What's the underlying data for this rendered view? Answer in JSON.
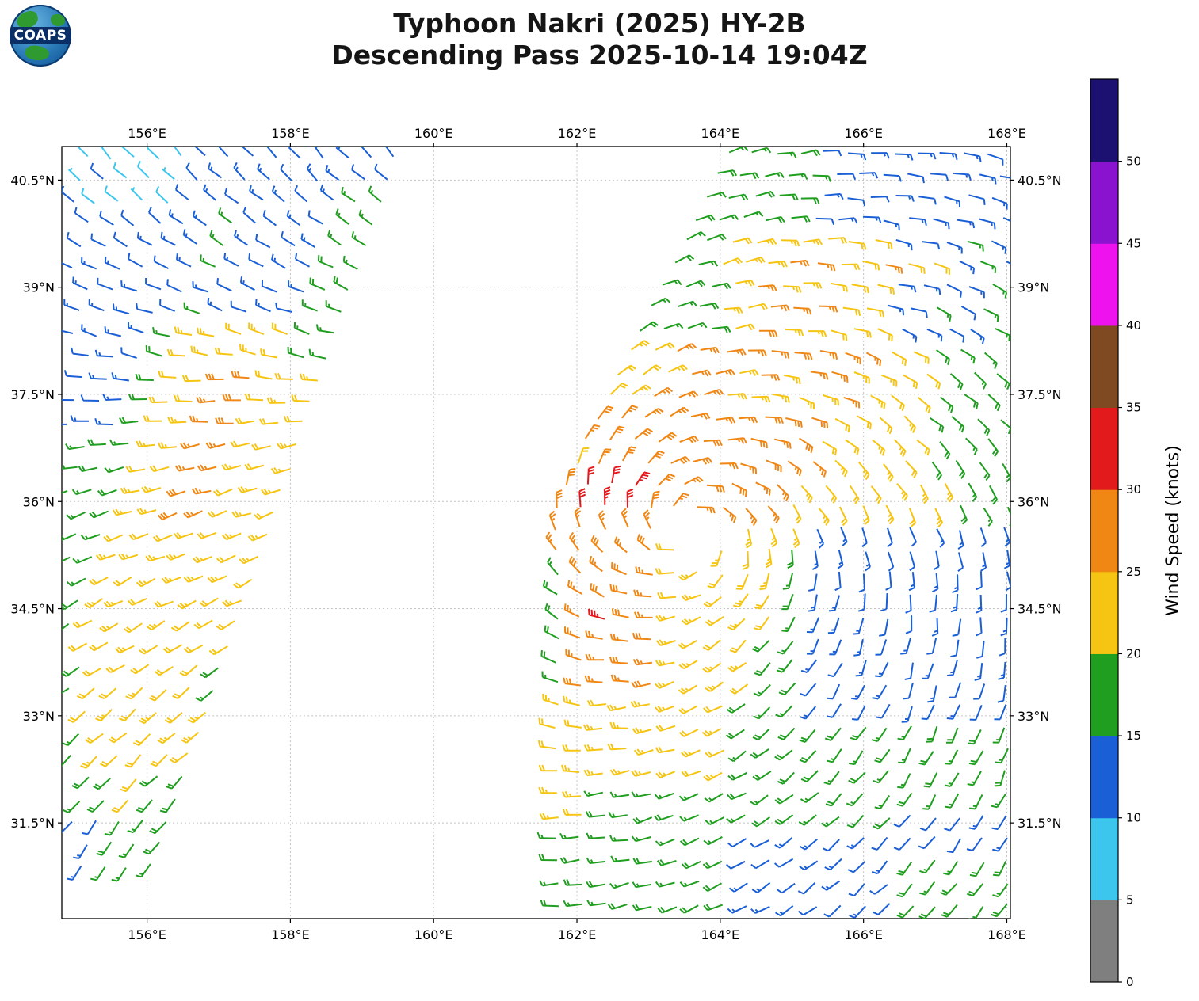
{
  "header": {
    "logo_text": "COAPS",
    "title_line1": "Typhoon Nakri (2025) HY-2B",
    "title_line2": "Descending Pass 2025-10-14 19:04Z"
  },
  "axes": {
    "lon_range": [
      154.81,
      168.05
    ],
    "lat_range": [
      30.16,
      40.97
    ],
    "lon_ticks": [
      {
        "value": 156,
        "label": "156°E"
      },
      {
        "value": 158,
        "label": "158°E"
      },
      {
        "value": 160,
        "label": "160°E"
      },
      {
        "value": 162,
        "label": "162°E"
      },
      {
        "value": 164,
        "label": "164°E"
      },
      {
        "value": 166,
        "label": "166°E"
      },
      {
        "value": 168,
        "label": "168°E"
      }
    ],
    "lat_ticks": [
      {
        "value": 40.5,
        "label": "40.5°N"
      },
      {
        "value": 39,
        "label": "39°N"
      },
      {
        "value": 37.5,
        "label": "37.5°N"
      },
      {
        "value": 36,
        "label": "36°N"
      },
      {
        "value": 34.5,
        "label": "34.5°N"
      },
      {
        "value": 33,
        "label": "33°N"
      },
      {
        "value": 31.5,
        "label": "31.5°N"
      }
    ]
  },
  "colorbar": {
    "label": "Wind Speed (knots)",
    "ticks": [
      0,
      5,
      10,
      15,
      20,
      25,
      30,
      35,
      40,
      45,
      50
    ],
    "segments_bottom_to_top": [
      {
        "from": 0,
        "to": 5,
        "color": "#7f7f7f"
      },
      {
        "from": 5,
        "to": 10,
        "color": "#3cc6ee"
      },
      {
        "from": 10,
        "to": 15,
        "color": "#1a5fd6"
      },
      {
        "from": 15,
        "to": 20,
        "color": "#1f9e1f"
      },
      {
        "from": 20,
        "to": 25,
        "color": "#f6c513"
      },
      {
        "from": 25,
        "to": 30,
        "color": "#f08714"
      },
      {
        "from": 30,
        "to": 35,
        "color": "#e31a1c"
      },
      {
        "from": 35,
        "to": 40,
        "color": "#7f4a21"
      },
      {
        "from": 40,
        "to": 45,
        "color": "#ee13ee"
      },
      {
        "from": 45,
        "to": 50,
        "color": "#8a13d0"
      },
      {
        "from": 50,
        "to": 55,
        "color": "#1c1070"
      }
    ]
  },
  "chart_data": {
    "type": "wind_barb_map",
    "satellite": "HY-2B",
    "storm": "Typhoon Nakri (2025)",
    "pass": "Descending 2025-10-14 19:04Z",
    "units": "knots",
    "storm_center_estimate": {
      "lon": 163.7,
      "lat": 35.6
    },
    "max_wind_regions": [
      {
        "lon": 162.4,
        "lat": 34.35,
        "kt": 32
      },
      {
        "lon": 162.5,
        "lat": 36.1,
        "kt": 32
      }
    ],
    "barb_grid_spacing_deg": {
      "lon": 0.33,
      "lat": 0.31
    },
    "vortex": {
      "center_lon": 163.55,
      "center_lat": 35.62,
      "inflow_deg": 20,
      "rotation": "counterclockwise"
    },
    "data_gap_ellipse": {
      "center_lon": 163.7,
      "center_lat": 35.6,
      "rx_deg": 0.65,
      "ry_deg": 0.33
    },
    "left_swath": {
      "lat_range": [
        30.85,
        40.92
      ],
      "right_edge": {
        "lon_at_lat33": 156.9,
        "dlon_dlat": 0.342
      },
      "width_deg": 4.6,
      "min_lon": 154.88,
      "wind_from_deg_by_lat": [
        [
          31,
          215
        ],
        [
          34,
          237
        ],
        [
          36.5,
          257
        ],
        [
          38.5,
          287
        ],
        [
          40.8,
          317
        ]
      ],
      "speed_zones": [
        {
          "lat": [
            40.0,
            41.0
          ],
          "c": [
            -999,
            154.9
          ],
          "kt": 8
        },
        {
          "lat": [
            40.35,
            41.0
          ],
          "kt": 12.5
        },
        {
          "lat": [
            37.9,
            40.35
          ],
          "c": [
            157.2,
            999
          ],
          "kt": 17.5
        },
        {
          "lat": [
            38.5,
            39.9
          ],
          "c": [
            155.5,
            156.15
          ],
          "kt": 16.5
        },
        {
          "lat": [
            38.35,
            40.35
          ],
          "kt": 12.5
        },
        {
          "lat": [
            37.1,
            38.35
          ],
          "c": [
            -999,
            155.25
          ],
          "kt": 12.5
        },
        {
          "lat": [
            35.8,
            37.95
          ],
          "c": [
            156.3,
            157.0
          ],
          "kt": 27.5
        },
        {
          "lat": [
            34.0,
            38.35
          ],
          "c": [
            155.75,
            999
          ],
          "kt": 22.5
        },
        {
          "lat": [
            34.0,
            38.35
          ],
          "kt": 17.5
        },
        {
          "lat": [
            32.3,
            34.0
          ],
          "lon": [
            155.15,
            156.9
          ],
          "kt": 22.5
        },
        {
          "lat": [
            32.3,
            34.0
          ],
          "kt": 17.5
        },
        {
          "lat": [
            31.6,
            32.3
          ],
          "lon": [
            155.2,
            156.3
          ],
          "kt": 20
        },
        {
          "lat": [
            31.6,
            32.3
          ],
          "kt": 17.5
        },
        {
          "lat": [
            -999,
            31.6
          ],
          "lon": [
            -999,
            155.35
          ],
          "kt": 12.5
        },
        {
          "lat": [
            -999,
            31.6
          ],
          "kt": 17.5
        }
      ]
    },
    "right_swath": {
      "lat_range": [
        30.3,
        40.92
      ],
      "left_edge": {
        "base_lon": 161.6,
        "pivot_lat": 36.0,
        "dlon_dlat_above_pivot": 0.49
      },
      "max_lon": 168.0,
      "speed_zones": [
        {
          "lat": [
            35.9,
            36.35
          ],
          "lon": [
            161.9,
            163.0
          ],
          "kt": 32.5
        },
        {
          "lat": [
            34.1,
            34.6
          ],
          "lon": [
            162.2,
            162.65
          ],
          "kt": 32.5
        },
        {
          "lat": [
            33.0,
            35.75
          ],
          "lon": [
            165.35,
            168.1
          ],
          "kt": 12.5
        },
        {
          "lat": [
            35.9,
            36.4
          ],
          "lon": [
            161.5,
            165.0
          ],
          "kt": 27.5
        },
        {
          "lat": [
            35.3,
            35.9
          ],
          "lon": [
            161.5,
            163.05
          ],
          "kt": 27.5
        },
        {
          "lat": [
            35.35,
            35.95
          ],
          "lon": [
            164.1,
            164.9
          ],
          "kt": 22.5
        },
        {
          "lat": [
            34.3,
            35.3
          ],
          "lon": [
            162.0,
            163.35
          ],
          "kt": 27.5
        },
        {
          "lat": [
            33.3,
            34.3
          ],
          "lon": [
            161.8,
            163.1
          ],
          "kt": 27.5
        },
        {
          "lat": [
            36.35,
            37.3
          ],
          "lon": [
            162.0,
            165.3
          ],
          "kt": 27.5
        },
        {
          "lat": [
            37.3,
            38.4
          ],
          "lon": [
            163.1,
            166.1
          ],
          "kt": 26
        },
        {
          "lat": [
            38.4,
            39.4
          ],
          "lon": [
            164.4,
            165.4
          ],
          "kt": 26
        },
        {
          "lat": [
            39.2,
            39.65
          ],
          "lon": [
            166.3,
            167.3
          ],
          "kt": 24
        },
        {
          "lat": [
            36.3,
            38.4
          ],
          "lon": [
            161.5,
            166.9
          ],
          "kt": 22.5
        },
        {
          "lat": [
            35.6,
            36.35
          ],
          "lon": [
            161.5,
            167.3
          ],
          "kt": 22.5
        },
        {
          "lat": [
            38.4,
            39.7
          ],
          "lon": [
            163.95,
            166.3
          ],
          "kt": 22.5
        },
        {
          "lat": [
            34.3,
            35.6
          ],
          "lon": [
            163.35,
            164.75
          ],
          "kt": 22.5
        },
        {
          "lat": [
            33.2,
            34.3
          ],
          "lon": [
            163.1,
            164.5
          ],
          "kt": 22.5
        },
        {
          "lat": [
            31.9,
            33.2
          ],
          "lon": [
            161.4,
            164.2
          ],
          "kt": 22.5
        },
        {
          "lat": [
            31.3,
            31.9
          ],
          "lon": [
            161.4,
            162.3
          ],
          "kt": 22.5
        },
        {
          "lat": [
            39.7,
            41.0
          ],
          "lon": [
            161.4,
            165.3
          ],
          "kt": 17.5
        },
        {
          "lat": [
            39.7,
            41.0
          ],
          "lon": [
            165.3,
            168.1
          ],
          "kt": 12.5
        },
        {
          "lat": [
            38.4,
            39.7
          ],
          "lon": [
            166.3,
            168.1
          ],
          "kt": 14
        },
        {
          "lat": [
            30.2,
            31.45
          ],
          "lon": [
            164.2,
            166.4
          ],
          "kt": 12.5
        },
        {
          "lat": [
            31.2,
            31.75
          ],
          "lon": [
            166.6,
            168.1
          ],
          "kt": 12.5
        },
        {
          "lat": [
            -999,
            999
          ],
          "lon": [
            -999,
            999
          ],
          "kt": 17.5
        }
      ]
    }
  }
}
